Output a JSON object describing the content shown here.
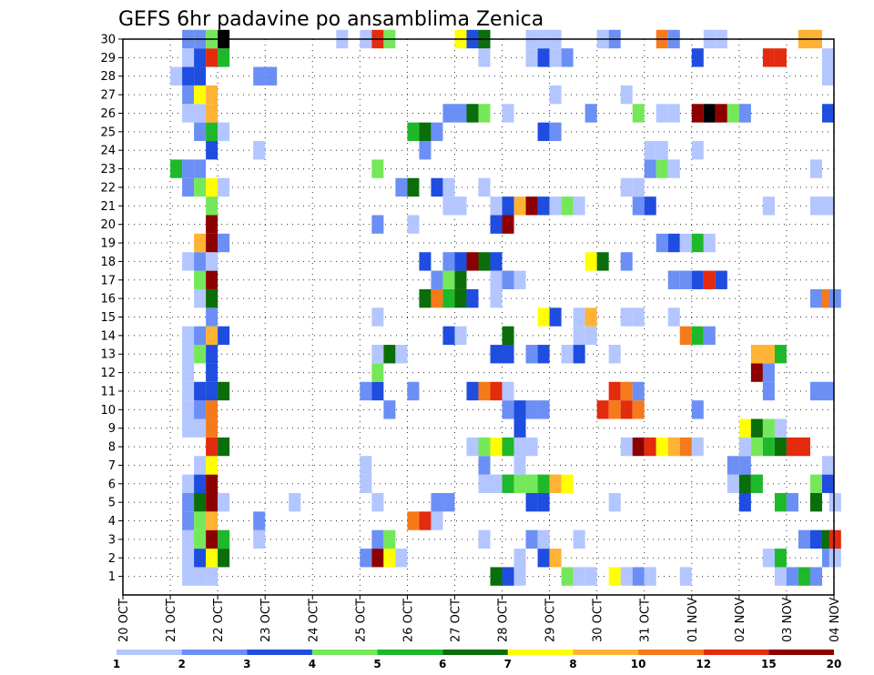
{
  "chart_data": {
    "type": "heatmap",
    "title": "GEFS 6hr padavine po ansamblima Zenica",
    "x_tick_labels": [
      "20 OCT",
      "21 OCT",
      "22 OCT",
      "23 OCT",
      "24 OCT",
      "25 OCT",
      "26 OCT",
      "27 OCT",
      "28 OCT",
      "29 OCT",
      "30 OCT",
      "31 OCT",
      "01 NOV",
      "02 NOV",
      "03 NOV",
      "04 NOV"
    ],
    "y_tick_labels": [
      "1",
      "2",
      "3",
      "4",
      "5",
      "6",
      "7",
      "8",
      "9",
      "10",
      "11",
      "12",
      "13",
      "14",
      "15",
      "16",
      "17",
      "18",
      "19",
      "20",
      "21",
      "22",
      "23",
      "24",
      "25",
      "26",
      "27",
      "28",
      "29",
      "30"
    ],
    "y_range": [
      1,
      30
    ],
    "grid": true,
    "legend": {
      "position": "bottom",
      "thresholds": [
        "1",
        "2",
        "3",
        "4",
        "5",
        "6",
        "7",
        "8",
        "10",
        "12",
        "15",
        "20"
      ],
      "colors": [
        "#b3c6ff",
        "#6b8ff5",
        "#1f4de0",
        "#75e85a",
        "#1fb82a",
        "#0a6e0a",
        "#ffff00",
        "#ffb233",
        "#f57a1a",
        "#e32b0d",
        "#8c0000"
      ]
    },
    "series_description_note": "",
    "cells_by_member": {
      "30": [
        [
          1.25,
          1
        ],
        [
          1.5,
          1
        ],
        [
          1.75,
          3
        ],
        [
          2,
          11
        ],
        [
          4.5,
          0
        ],
        [
          5,
          0
        ],
        [
          5.25,
          9
        ],
        [
          5.5,
          3
        ],
        [
          7,
          6
        ],
        [
          7.25,
          2
        ],
        [
          7.5,
          5
        ],
        [
          8.5,
          0
        ],
        [
          8.75,
          0
        ],
        [
          9.0,
          0
        ],
        [
          10.0,
          0
        ],
        [
          10.25,
          1
        ],
        [
          11.25,
          8
        ],
        [
          11.5,
          1
        ],
        [
          12.25,
          0
        ],
        [
          12.5,
          0
        ],
        [
          14.25,
          7
        ],
        [
          14.5,
          7
        ]
      ],
      "29": [
        [
          1.25,
          0
        ],
        [
          1.5,
          2
        ],
        [
          1.75,
          9
        ],
        [
          2,
          4
        ],
        [
          7.5,
          0
        ],
        [
          8.5,
          0
        ],
        [
          8.75,
          2
        ],
        [
          9.0,
          0
        ],
        [
          9.25,
          1
        ],
        [
          12,
          2
        ],
        [
          13.5,
          9
        ],
        [
          13.75,
          9
        ],
        [
          14.75,
          0
        ]
      ],
      "28": [
        [
          1,
          0
        ],
        [
          1.25,
          2
        ],
        [
          1.5,
          2
        ],
        [
          2.75,
          1
        ],
        [
          3,
          1
        ],
        [
          14.75,
          0
        ]
      ],
      "27": [
        [
          1.25,
          1
        ],
        [
          1.5,
          6
        ],
        [
          1.75,
          7
        ],
        [
          9,
          0
        ],
        [
          10.5,
          0
        ]
      ],
      "26": [
        [
          1.25,
          0
        ],
        [
          1.5,
          0
        ],
        [
          1.75,
          7
        ],
        [
          6.75,
          1
        ],
        [
          7,
          1
        ],
        [
          7.25,
          5
        ],
        [
          7.5,
          3
        ],
        [
          8,
          0
        ],
        [
          9.75,
          1
        ],
        [
          10.75,
          3
        ],
        [
          11.25,
          0
        ],
        [
          11.5,
          0
        ],
        [
          12,
          10
        ],
        [
          12.25,
          11
        ],
        [
          12.5,
          10
        ],
        [
          12.75,
          3
        ],
        [
          13,
          1
        ],
        [
          14.75,
          2
        ]
      ],
      "25": [
        [
          1.5,
          1
        ],
        [
          1.75,
          4
        ],
        [
          2,
          0
        ],
        [
          6,
          4
        ],
        [
          6.25,
          5
        ],
        [
          6.5,
          1
        ],
        [
          8.75,
          2
        ],
        [
          9,
          1
        ]
      ],
      "24": [
        [
          1.75,
          2
        ],
        [
          2.75,
          0
        ],
        [
          6.25,
          1
        ],
        [
          11,
          0
        ],
        [
          11.25,
          0
        ],
        [
          12,
          0
        ]
      ],
      "23": [
        [
          1,
          4
        ],
        [
          1.25,
          1
        ],
        [
          1.5,
          1
        ],
        [
          5.25,
          3
        ],
        [
          11,
          1
        ],
        [
          11.25,
          3
        ],
        [
          11.5,
          0
        ],
        [
          14.5,
          0
        ]
      ],
      "22": [
        [
          1.25,
          1
        ],
        [
          1.5,
          3
        ],
        [
          1.75,
          6
        ],
        [
          2,
          0
        ],
        [
          5.75,
          1
        ],
        [
          6,
          5
        ],
        [
          6.5,
          2
        ],
        [
          6.75,
          0
        ],
        [
          7.5,
          0
        ],
        [
          10.5,
          0
        ],
        [
          10.75,
          0
        ]
      ],
      "21": [
        [
          1.75,
          3
        ],
        [
          6.75,
          0
        ],
        [
          7,
          0
        ],
        [
          7.75,
          0
        ],
        [
          8,
          2
        ],
        [
          8.25,
          7
        ],
        [
          8.5,
          10
        ],
        [
          8.75,
          2
        ],
        [
          9,
          0
        ],
        [
          9.25,
          3
        ],
        [
          9.5,
          0
        ],
        [
          10.75,
          1
        ],
        [
          11,
          2
        ],
        [
          13.5,
          0
        ],
        [
          14.5,
          0
        ],
        [
          14.75,
          0
        ]
      ],
      "20": [
        [
          1.75,
          10
        ],
        [
          5.25,
          1
        ],
        [
          6,
          0
        ],
        [
          7.75,
          2
        ],
        [
          8,
          10
        ]
      ],
      "19": [
        [
          1.5,
          7
        ],
        [
          1.75,
          10
        ],
        [
          2,
          1
        ],
        [
          11.25,
          1
        ],
        [
          11.5,
          2
        ],
        [
          11.75,
          0
        ],
        [
          12,
          4
        ],
        [
          12.25,
          0
        ]
      ],
      "18": [
        [
          1.25,
          0
        ],
        [
          1.5,
          1
        ],
        [
          1.75,
          0
        ],
        [
          6.25,
          2
        ],
        [
          6.75,
          1
        ],
        [
          7,
          2
        ],
        [
          7.25,
          10
        ],
        [
          7.5,
          5
        ],
        [
          7.75,
          2
        ],
        [
          9.75,
          6
        ],
        [
          10,
          5
        ],
        [
          10.5,
          1
        ]
      ],
      "17": [
        [
          1.5,
          3
        ],
        [
          1.75,
          10
        ],
        [
          6.5,
          1
        ],
        [
          6.75,
          3
        ],
        [
          7,
          5
        ],
        [
          7.75,
          0
        ],
        [
          8,
          1
        ],
        [
          8.25,
          0
        ],
        [
          11.5,
          1
        ],
        [
          11.75,
          1
        ],
        [
          12,
          2
        ],
        [
          12.25,
          9
        ],
        [
          12.5,
          2
        ]
      ],
      "16": [
        [
          1.5,
          0
        ],
        [
          1.75,
          5
        ],
        [
          6.25,
          5
        ],
        [
          6.5,
          8
        ],
        [
          6.75,
          4
        ],
        [
          7,
          5
        ],
        [
          7.25,
          2
        ],
        [
          7.75,
          0
        ],
        [
          14.5,
          1
        ],
        [
          14.75,
          8
        ],
        [
          14.9,
          1
        ]
      ],
      "15": [
        [
          1.75,
          1
        ],
        [
          5.25,
          0
        ],
        [
          8.75,
          6
        ],
        [
          9,
          2
        ],
        [
          9.5,
          0
        ],
        [
          9.75,
          7
        ],
        [
          10.5,
          0
        ],
        [
          10.75,
          0
        ],
        [
          11.5,
          0
        ]
      ],
      "14": [
        [
          1.25,
          0
        ],
        [
          1.5,
          1
        ],
        [
          1.75,
          7
        ],
        [
          2,
          2
        ],
        [
          6.75,
          2
        ],
        [
          7,
          0
        ],
        [
          8,
          5
        ],
        [
          9.5,
          0
        ],
        [
          9.75,
          0
        ],
        [
          11.75,
          8
        ],
        [
          12,
          4
        ],
        [
          12.25,
          1
        ]
      ],
      "13": [
        [
          1.25,
          0
        ],
        [
          1.5,
          3
        ],
        [
          1.75,
          2
        ],
        [
          5.25,
          0
        ],
        [
          5.5,
          5
        ],
        [
          5.75,
          0
        ],
        [
          7.75,
          2
        ],
        [
          8,
          2
        ],
        [
          8.5,
          1
        ],
        [
          8.75,
          2
        ],
        [
          9.25,
          0
        ],
        [
          9.5,
          2
        ],
        [
          10.25,
          0
        ],
        [
          13.25,
          7
        ],
        [
          13.5,
          7
        ],
        [
          13.75,
          4
        ]
      ],
      "12": [
        [
          1.25,
          0
        ],
        [
          1.75,
          2
        ],
        [
          5.25,
          3
        ],
        [
          13.25,
          10
        ],
        [
          13.5,
          1
        ]
      ],
      "11": [
        [
          1.25,
          0
        ],
        [
          1.5,
          2
        ],
        [
          1.75,
          2
        ],
        [
          2,
          5
        ],
        [
          5,
          1
        ],
        [
          5.25,
          2
        ],
        [
          6,
          1
        ],
        [
          7.25,
          2
        ],
        [
          7.5,
          8
        ],
        [
          7.75,
          9
        ],
        [
          8,
          0
        ],
        [
          10.25,
          9
        ],
        [
          10.5,
          8
        ],
        [
          10.75,
          1
        ],
        [
          13.5,
          1
        ],
        [
          14.5,
          1
        ],
        [
          14.75,
          1
        ]
      ],
      "10": [
        [
          1.25,
          0
        ],
        [
          1.5,
          1
        ],
        [
          1.75,
          8
        ],
        [
          5.5,
          1
        ],
        [
          8,
          1
        ],
        [
          8.25,
          2
        ],
        [
          8.5,
          1
        ],
        [
          8.75,
          1
        ],
        [
          10,
          9
        ],
        [
          10.25,
          8
        ],
        [
          10.5,
          9
        ],
        [
          10.75,
          8
        ],
        [
          12,
          1
        ]
      ],
      "9": [
        [
          1.25,
          0
        ],
        [
          1.5,
          0
        ],
        [
          1.75,
          8
        ],
        [
          8.25,
          2
        ],
        [
          13,
          6
        ],
        [
          13.25,
          5
        ],
        [
          13.5,
          3
        ],
        [
          13.75,
          0
        ]
      ],
      "8": [
        [
          1.75,
          9
        ],
        [
          2,
          5
        ],
        [
          7.25,
          0
        ],
        [
          7.5,
          3
        ],
        [
          7.75,
          6
        ],
        [
          8,
          4
        ],
        [
          8.25,
          0
        ],
        [
          8.5,
          0
        ],
        [
          10.5,
          0
        ],
        [
          10.75,
          10
        ],
        [
          11,
          9
        ],
        [
          11.25,
          6
        ],
        [
          11.5,
          7
        ],
        [
          11.75,
          8
        ],
        [
          12,
          0
        ],
        [
          13,
          0
        ],
        [
          13.25,
          3
        ],
        [
          13.5,
          4
        ],
        [
          13.75,
          5
        ],
        [
          14,
          9
        ],
        [
          14.25,
          9
        ]
      ],
      "7": [
        [
          1.5,
          0
        ],
        [
          1.75,
          6
        ],
        [
          5,
          0
        ],
        [
          7.5,
          1
        ],
        [
          8.25,
          0
        ],
        [
          12.75,
          1
        ],
        [
          13,
          1
        ],
        [
          14.75,
          0
        ]
      ],
      "6": [
        [
          1.25,
          0
        ],
        [
          1.5,
          2
        ],
        [
          1.75,
          10
        ],
        [
          5,
          0
        ],
        [
          7.5,
          0
        ],
        [
          7.75,
          0
        ],
        [
          8,
          4
        ],
        [
          8.25,
          3
        ],
        [
          8.5,
          3
        ],
        [
          8.75,
          4
        ],
        [
          9,
          7
        ],
        [
          9.25,
          6
        ],
        [
          12.75,
          0
        ],
        [
          13,
          5
        ],
        [
          13.25,
          4
        ],
        [
          14.5,
          3
        ],
        [
          14.75,
          2
        ]
      ],
      "5": [
        [
          1.25,
          1
        ],
        [
          1.5,
          5
        ],
        [
          1.75,
          10
        ],
        [
          2,
          0
        ],
        [
          3.5,
          0
        ],
        [
          5.25,
          0
        ],
        [
          6.5,
          1
        ],
        [
          6.75,
          1
        ],
        [
          8.5,
          2
        ],
        [
          8.75,
          2
        ],
        [
          10.25,
          0
        ],
        [
          13,
          2
        ],
        [
          13.75,
          4
        ],
        [
          14,
          1
        ],
        [
          14.5,
          5
        ],
        [
          14.9,
          0
        ]
      ],
      "4": [
        [
          1.25,
          1
        ],
        [
          1.5,
          3
        ],
        [
          1.75,
          7
        ],
        [
          2.75,
          1
        ],
        [
          6,
          8
        ],
        [
          6.25,
          9
        ],
        [
          6.5,
          0
        ]
      ],
      "3": [
        [
          1.25,
          0
        ],
        [
          1.5,
          3
        ],
        [
          1.75,
          10
        ],
        [
          2,
          4
        ],
        [
          2.75,
          0
        ],
        [
          5.25,
          1
        ],
        [
          5.5,
          3
        ],
        [
          7.5,
          0
        ],
        [
          8.5,
          1
        ],
        [
          8.75,
          0
        ],
        [
          9.5,
          0
        ],
        [
          14.25,
          1
        ],
        [
          14.5,
          2
        ],
        [
          14.75,
          5
        ],
        [
          14.9,
          9
        ]
      ],
      "2": [
        [
          1.25,
          0
        ],
        [
          1.5,
          2
        ],
        [
          1.75,
          6
        ],
        [
          2,
          5
        ],
        [
          5,
          1
        ],
        [
          5.25,
          10
        ],
        [
          5.5,
          6
        ],
        [
          5.75,
          0
        ],
        [
          8.25,
          0
        ],
        [
          8.75,
          2
        ],
        [
          9,
          7
        ],
        [
          13.5,
          0
        ],
        [
          13.75,
          4
        ],
        [
          14.75,
          1
        ],
        [
          14.9,
          0
        ]
      ],
      "1": [
        [
          1.25,
          0
        ],
        [
          1.5,
          0
        ],
        [
          1.75,
          0
        ],
        [
          7.75,
          5
        ],
        [
          8,
          2
        ],
        [
          8.25,
          0
        ],
        [
          9.25,
          3
        ],
        [
          9.5,
          0
        ],
        [
          9.75,
          0
        ],
        [
          10.25,
          6
        ],
        [
          10.5,
          0
        ],
        [
          10.75,
          1
        ],
        [
          11,
          0
        ],
        [
          11.75,
          0
        ],
        [
          13.75,
          0
        ],
        [
          14.0,
          1
        ],
        [
          14.25,
          4
        ],
        [
          14.5,
          1
        ]
      ]
    }
  }
}
